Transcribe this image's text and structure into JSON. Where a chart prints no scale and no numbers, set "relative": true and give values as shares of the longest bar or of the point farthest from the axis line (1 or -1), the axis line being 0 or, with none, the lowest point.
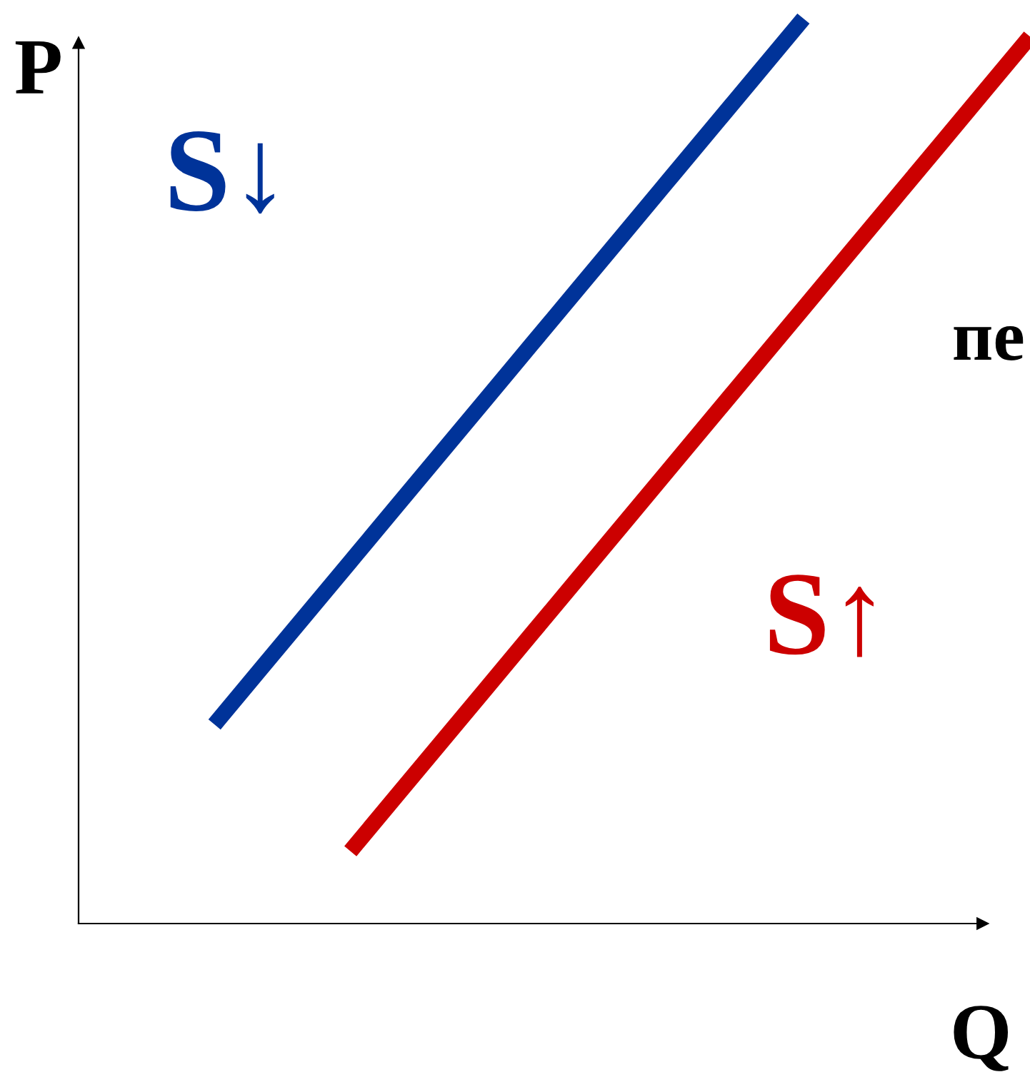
{
  "chart_data": {
    "type": "line",
    "relative": true,
    "xlabel": "Q",
    "ylabel": "P",
    "annotations": [
      "пе"
    ],
    "categories": [
      null,
      null,
      null,
      null,
      null,
      null,
      null,
      null,
      null,
      null,
      null,
      null,
      null,
      null,
      null,
      null,
      null,
      null,
      null,
      null,
      null,
      null
    ],
    "series": [
      {
        "name": "S↓",
        "color": "#003399",
        "values": [
          null,
          null,
          null,
          0.22,
          0.28,
          0.34,
          0.4,
          0.46,
          0.52,
          0.58,
          0.64,
          0.7,
          0.76,
          0.82,
          0.88,
          0.94,
          1.0,
          null,
          null,
          null,
          null,
          null
        ]
      },
      {
        "name": "S↑",
        "color": "#cc0000",
        "values": [
          null,
          null,
          null,
          null,
          null,
          null,
          0.08,
          0.14,
          0.2,
          0.26,
          0.32,
          0.38,
          0.44,
          0.5,
          0.56,
          0.62,
          0.68,
          0.74,
          0.8,
          0.86,
          0.92,
          0.98
        ]
      }
    ]
  }
}
